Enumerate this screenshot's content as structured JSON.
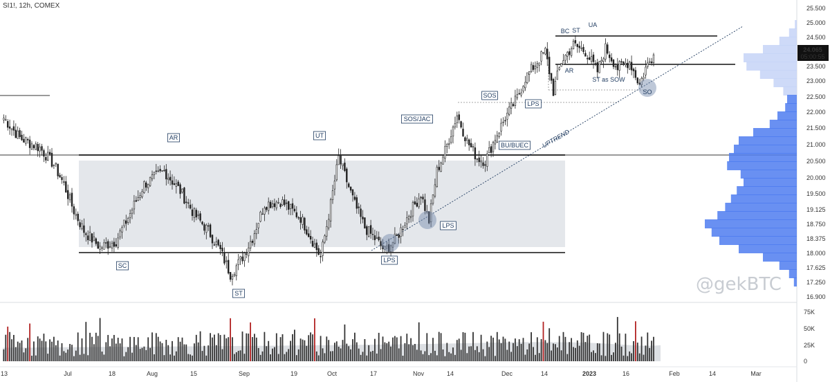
{
  "header": {
    "title": "SI1!, 12h, COMEX"
  },
  "watermark": "@gekBTC",
  "price_label": {
    "value": "24.065",
    "countdown": "05:00:55"
  },
  "colors": {
    "candle": "#222222",
    "range_fill": "#dfe3e8",
    "volume_profile": "#4f7df0",
    "volume_profile_light": "#c5d4f7",
    "volume_bar": "#333333",
    "volume_bar_high": "#b22222",
    "circle": "#6f86a8"
  },
  "annotations": [
    "AR",
    "SC",
    "ST",
    "UT",
    "SOS/JAC",
    "SOS",
    "LPS",
    "LPS",
    "LPS",
    "BU/BUEC",
    "UPTREND",
    "BC",
    "ST",
    "UA",
    "AR",
    "ST as SOW",
    "SO"
  ],
  "chart_data": {
    "type": "candlestick",
    "title": "SI1!, 12h, COMEX",
    "xlabel": "",
    "ylabel": "",
    "x_ticks": [
      "13",
      "Jul",
      "18",
      "Aug",
      "15",
      "Sep",
      "19",
      "Oct",
      "17",
      "Nov",
      "14",
      "Dec",
      "14",
      "2023",
      "16",
      "Feb",
      "14",
      "Mar"
    ],
    "y_ticks": [
      "25.500",
      "25.000",
      "24.500",
      "24.000",
      "23.500",
      "23.000",
      "22.500",
      "22.000",
      "21.500",
      "21.000",
      "20.500",
      "20.000",
      "19.500",
      "19.125",
      "18.750",
      "18.375",
      "18.000",
      "17.625",
      "17.250",
      "16.900"
    ],
    "ylim": [
      16.9,
      25.5
    ],
    "volume_ticks": [
      "75K",
      "50K",
      "25K",
      "0"
    ],
    "volume_ylim": [
      0,
      80000
    ],
    "last_price": 24.065,
    "price_path": [
      [
        0,
        22.2
      ],
      [
        8,
        21.6
      ],
      [
        18,
        21.3
      ],
      [
        25,
        20.8
      ],
      [
        30,
        20.2
      ],
      [
        35,
        19.4
      ],
      [
        40,
        18.8
      ],
      [
        48,
        18.3
      ],
      [
        56,
        18.5
      ],
      [
        62,
        19.2
      ],
      [
        70,
        20.2
      ],
      [
        80,
        20.6
      ],
      [
        88,
        20.0
      ],
      [
        95,
        19.3
      ],
      [
        102,
        18.8
      ],
      [
        108,
        18.2
      ],
      [
        113,
        17.5
      ],
      [
        118,
        17.9
      ],
      [
        124,
        18.6
      ],
      [
        130,
        19.6
      ],
      [
        138,
        19.7
      ],
      [
        148,
        19.2
      ],
      [
        154,
        18.5
      ],
      [
        158,
        18.0
      ],
      [
        163,
        19.6
      ],
      [
        167,
        21.0
      ],
      [
        171,
        20.3
      ],
      [
        175,
        19.6
      ],
      [
        180,
        18.9
      ],
      [
        186,
        18.5
      ],
      [
        190,
        18.2
      ],
      [
        196,
        18.6
      ],
      [
        202,
        19.3
      ],
      [
        208,
        19.9
      ],
      [
        212,
        19.1
      ],
      [
        216,
        20.6
      ],
      [
        220,
        21.2
      ],
      [
        226,
        22.3
      ],
      [
        231,
        21.5
      ],
      [
        236,
        21.0
      ],
      [
        240,
        20.9
      ],
      [
        245,
        21.6
      ],
      [
        250,
        22.2
      ],
      [
        256,
        22.8
      ],
      [
        260,
        23.4
      ],
      [
        266,
        23.9
      ],
      [
        270,
        24.2
      ],
      [
        274,
        23.0
      ],
      [
        278,
        23.9
      ],
      [
        284,
        24.4
      ],
      [
        290,
        24.2
      ],
      [
        296,
        23.6
      ],
      [
        300,
        24.3
      ],
      [
        306,
        23.7
      ],
      [
        312,
        23.9
      ],
      [
        317,
        23.2
      ],
      [
        320,
        23.7
      ],
      [
        324,
        24.1
      ]
    ],
    "volume_profile": [
      [
        25.0,
        0.02
      ],
      [
        24.75,
        0.08
      ],
      [
        24.5,
        0.18
      ],
      [
        24.25,
        0.35
      ],
      [
        24.0,
        0.55
      ],
      [
        23.75,
        0.52
      ],
      [
        23.5,
        0.38
      ],
      [
        23.25,
        0.24
      ],
      [
        23.0,
        0.14
      ],
      [
        22.75,
        0.1
      ],
      [
        22.5,
        0.12
      ],
      [
        22.25,
        0.2
      ],
      [
        22.0,
        0.28
      ],
      [
        21.75,
        0.45
      ],
      [
        21.5,
        0.6
      ],
      [
        21.25,
        0.65
      ],
      [
        21.0,
        0.7
      ],
      [
        20.75,
        0.72
      ],
      [
        20.5,
        0.58
      ],
      [
        20.25,
        0.55
      ],
      [
        20.0,
        0.62
      ],
      [
        19.75,
        0.68
      ],
      [
        19.5,
        0.74
      ],
      [
        19.25,
        0.82
      ],
      [
        19.0,
        0.95
      ],
      [
        18.75,
        0.88
      ],
      [
        18.5,
        0.8
      ],
      [
        18.25,
        0.6
      ],
      [
        18.0,
        0.35
      ],
      [
        17.75,
        0.18
      ],
      [
        17.5,
        0.08
      ],
      [
        17.25,
        0.03
      ]
    ]
  }
}
